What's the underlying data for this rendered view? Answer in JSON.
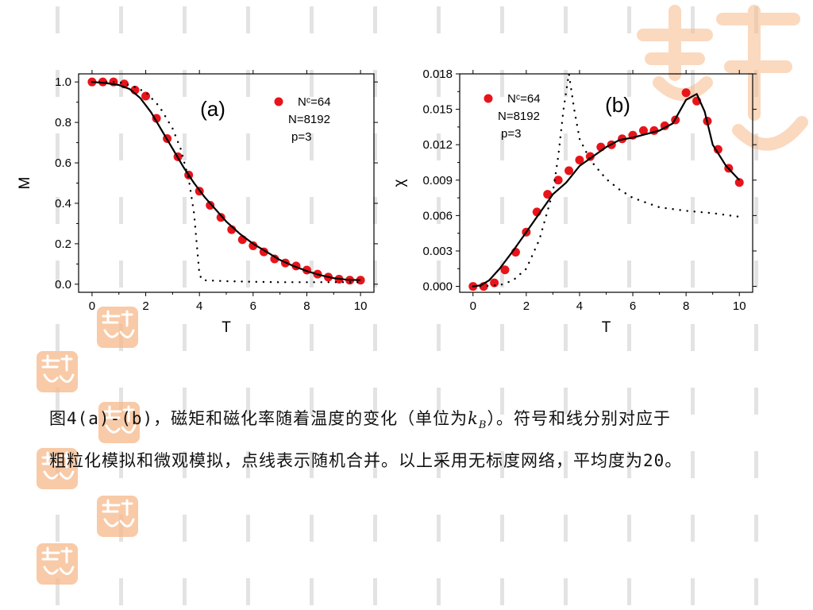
{
  "chart_data": [
    {
      "type": "scatter",
      "panel_label": "(a)",
      "xlabel": "T",
      "ylabel": "M",
      "xlim": [
        -0.5,
        10.5
      ],
      "ylim": [
        -0.04,
        1.04
      ],
      "xticks": [
        0,
        2,
        4,
        6,
        8,
        10
      ],
      "yticks": [
        0.0,
        0.2,
        0.4,
        0.6,
        0.8,
        1.0
      ],
      "ytick_labels": [
        "0.0",
        "0.2",
        "0.4",
        "0.6",
        "0.8",
        "1.0"
      ],
      "legend": {
        "position": "top-right",
        "entries": [
          "Nᶜ=64",
          "N=8192",
          "p=3"
        ]
      },
      "series": [
        {
          "kind": "markers",
          "color": "#e8141a",
          "x": [
            0,
            0.4,
            0.8,
            1.2,
            1.6,
            2.0,
            2.4,
            2.8,
            3.2,
            3.6,
            4.0,
            4.4,
            4.8,
            5.2,
            5.6,
            6.0,
            6.4,
            6.8,
            7.2,
            7.6,
            8.0,
            8.4,
            8.8,
            9.2,
            9.6,
            10.0
          ],
          "y": [
            1.0,
            1.0,
            1.0,
            0.99,
            0.96,
            0.93,
            0.82,
            0.72,
            0.63,
            0.54,
            0.46,
            0.39,
            0.33,
            0.27,
            0.22,
            0.19,
            0.16,
            0.125,
            0.105,
            0.09,
            0.07,
            0.05,
            0.035,
            0.025,
            0.02,
            0.02
          ]
        },
        {
          "kind": "line",
          "color": "#000000",
          "x": [
            0,
            0.5,
            1.0,
            1.4,
            1.8,
            2.2,
            2.6,
            3.0,
            3.4,
            3.8,
            4.2,
            4.6,
            5.0,
            5.5,
            6.0,
            6.5,
            7.0,
            7.5,
            8.0,
            8.5,
            9.0,
            9.5,
            10.0
          ],
          "y": [
            1.0,
            0.995,
            0.985,
            0.965,
            0.92,
            0.85,
            0.76,
            0.67,
            0.58,
            0.5,
            0.43,
            0.37,
            0.31,
            0.25,
            0.2,
            0.16,
            0.12,
            0.09,
            0.065,
            0.045,
            0.03,
            0.022,
            0.02
          ]
        },
        {
          "kind": "dotted",
          "color": "#000000",
          "x": [
            0,
            1.0,
            1.5,
            2.0,
            2.5,
            3.0,
            3.3,
            3.6,
            3.8,
            3.9,
            4.0,
            4.1,
            5.0,
            6.0,
            7.0,
            8.0,
            9.0,
            10.0
          ],
          "y": [
            1.0,
            1.0,
            0.98,
            0.95,
            0.88,
            0.77,
            0.67,
            0.52,
            0.35,
            0.2,
            0.05,
            0.02,
            0.015,
            0.012,
            0.01,
            0.01,
            0.01,
            0.01
          ]
        }
      ]
    },
    {
      "type": "scatter",
      "panel_label": "(b)",
      "xlabel": "T",
      "ylabel": "χ",
      "xlim": [
        -0.5,
        10.5
      ],
      "ylim": [
        -0.0005,
        0.018
      ],
      "xticks": [
        0,
        2,
        4,
        6,
        8,
        10
      ],
      "yticks": [
        0.0,
        0.003,
        0.006,
        0.009,
        0.012,
        0.015,
        0.018
      ],
      "ytick_labels": [
        "0.000",
        "0.003",
        "0.006",
        "0.009",
        "0.012",
        "0.015",
        "0.018"
      ],
      "legend": {
        "position": "top-left",
        "entries": [
          "Nᶜ=64",
          "N=8192",
          "p=3"
        ]
      },
      "series": [
        {
          "kind": "markers",
          "color": "#e8141a",
          "x": [
            0,
            0.4,
            0.8,
            1.2,
            1.6,
            2.0,
            2.4,
            2.8,
            3.2,
            3.6,
            4.0,
            4.4,
            4.8,
            5.2,
            5.6,
            6.0,
            6.4,
            6.8,
            7.2,
            7.6,
            8.0,
            8.4,
            8.8,
            9.2,
            9.6,
            10.0
          ],
          "y": [
            0.0,
            0.0,
            0.0003,
            0.0014,
            0.0029,
            0.0046,
            0.0063,
            0.0078,
            0.009,
            0.0098,
            0.0107,
            0.011,
            0.0118,
            0.012,
            0.0125,
            0.0128,
            0.0132,
            0.0132,
            0.0136,
            0.0141,
            0.0164,
            0.0157,
            0.014,
            0.0116,
            0.01,
            0.0088
          ]
        },
        {
          "kind": "line",
          "color": "#000000",
          "x": [
            0,
            0.3,
            0.6,
            1.0,
            1.5,
            2.0,
            2.5,
            3.0,
            3.5,
            4.0,
            4.5,
            5.0,
            5.5,
            6.0,
            6.5,
            7.0,
            7.5,
            8.0,
            8.4,
            8.7,
            9.0,
            9.5,
            10.0
          ],
          "y": [
            0.0,
            0.0001,
            0.0005,
            0.0015,
            0.003,
            0.0046,
            0.0062,
            0.0078,
            0.0088,
            0.0102,
            0.011,
            0.0118,
            0.0124,
            0.0126,
            0.0129,
            0.0132,
            0.0138,
            0.0158,
            0.0163,
            0.0148,
            0.012,
            0.0102,
            0.009
          ]
        },
        {
          "kind": "dotted",
          "color": "#000000",
          "x": [
            0,
            1.0,
            1.5,
            2.0,
            2.5,
            3.0,
            3.2,
            3.4,
            3.6,
            3.8,
            4.0,
            4.4,
            5.0,
            5.5,
            6.0,
            7.0,
            8.0,
            9.0,
            10.0
          ],
          "y": [
            0.0,
            0.0001,
            0.0005,
            0.0015,
            0.004,
            0.008,
            0.011,
            0.015,
            0.018,
            0.015,
            0.0125,
            0.0107,
            0.0091,
            0.0082,
            0.0075,
            0.0067,
            0.0064,
            0.0062,
            0.0059
          ]
        }
      ]
    }
  ],
  "caption": {
    "line1_before": "图4(a)-(b)，磁矩和磁化率随着温度的变化（单位为",
    "kb_symbol": "k",
    "kb_subscript": "B",
    "line1_after": "）。符号和线分别对应于",
    "line2": "粗粒化模拟和微观模拟，点线表示随机合并。以上采用无标度网络，平均度为20。"
  },
  "decoration": {
    "stripe_color": "#e3e3e3",
    "watermark_color": "#f6b98a"
  }
}
